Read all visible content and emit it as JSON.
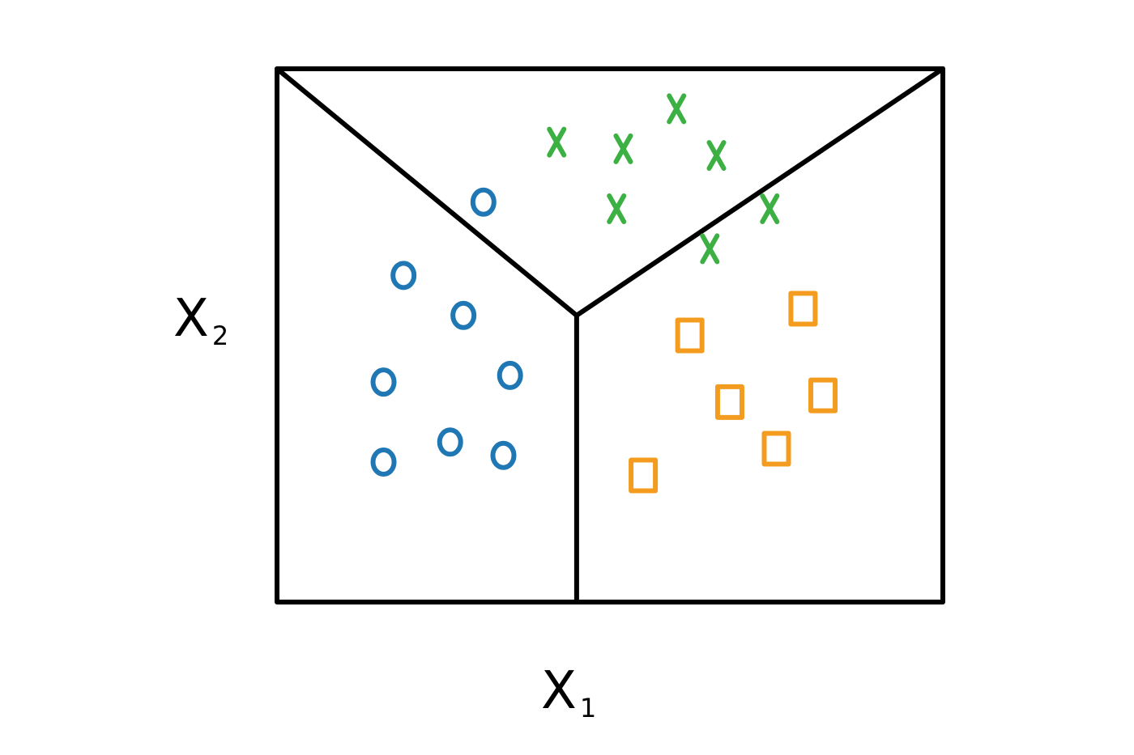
{
  "chart_data": {
    "type": "scatter",
    "title": "",
    "xlabel": {
      "base": "X",
      "sub": "1"
    },
    "ylabel": {
      "base": "X",
      "sub": "2"
    },
    "xlim": [
      0,
      10
    ],
    "ylim": [
      0,
      8
    ],
    "grid": false,
    "colors": {
      "frame": "#000000",
      "boundary": "#000000",
      "circle": "#1f77b4",
      "cross": "#3cb043",
      "square": "#f39c1f"
    },
    "decision_boundaries": [
      {
        "from": [
          0,
          8
        ],
        "to": [
          4.5,
          4.3
        ]
      },
      {
        "from": [
          10,
          8
        ],
        "to": [
          4.5,
          4.3
        ]
      },
      {
        "from": [
          4.5,
          4.3
        ],
        "to": [
          4.5,
          0
        ]
      }
    ],
    "series": [
      {
        "marker": "circle",
        "color": "#1f77b4",
        "points": [
          [
            3.1,
            6.0
          ],
          [
            1.9,
            4.9
          ],
          [
            2.8,
            4.3
          ],
          [
            3.5,
            3.4
          ],
          [
            1.6,
            3.3
          ],
          [
            2.6,
            2.4
          ],
          [
            1.6,
            2.1
          ],
          [
            3.4,
            2.2
          ]
        ]
      },
      {
        "marker": "cross",
        "color": "#3cb043",
        "points": [
          [
            4.2,
            6.9
          ],
          [
            5.2,
            6.8
          ],
          [
            6.0,
            7.4
          ],
          [
            6.6,
            6.7
          ],
          [
            5.1,
            5.9
          ],
          [
            7.4,
            5.9
          ],
          [
            6.5,
            5.3
          ]
        ]
      },
      {
        "marker": "square",
        "color": "#f39c1f",
        "points": [
          [
            7.9,
            4.4
          ],
          [
            6.2,
            4.0
          ],
          [
            8.2,
            3.1
          ],
          [
            6.8,
            3.0
          ],
          [
            7.5,
            2.3
          ],
          [
            5.5,
            1.9
          ]
        ]
      }
    ]
  }
}
